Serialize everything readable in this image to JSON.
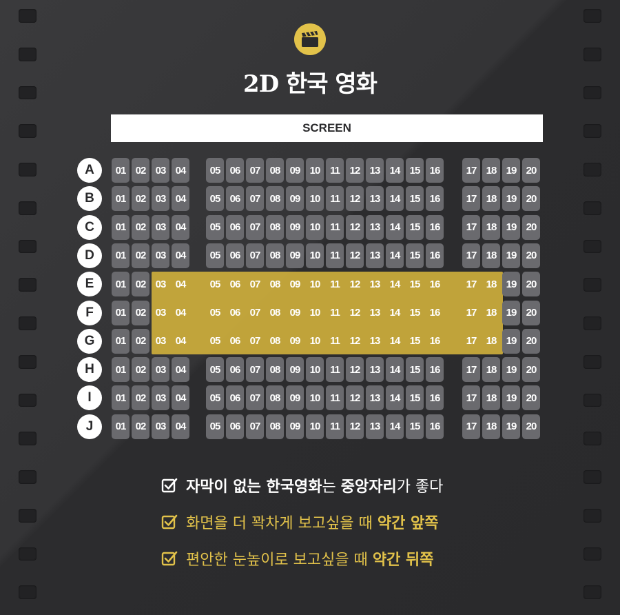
{
  "title": "2D 한국 영화",
  "screen_label": "SCREEN",
  "rows": [
    "A",
    "B",
    "C",
    "D",
    "E",
    "F",
    "G",
    "H",
    "I",
    "J"
  ],
  "seats": [
    "01",
    "02",
    "03",
    "04",
    "05",
    "06",
    "07",
    "08",
    "09",
    "10",
    "11",
    "12",
    "13",
    "14",
    "15",
    "16",
    "17",
    "18",
    "19",
    "20"
  ],
  "highlight": {
    "rows": [
      "E",
      "F",
      "G"
    ],
    "seats_from": "03",
    "seats_to": "18",
    "color": "#cdae3c"
  },
  "notes": [
    {
      "parts": [
        {
          "text": "자막이 없는 ",
          "bold": true
        },
        {
          "text": "한국영화",
          "bold": true
        },
        {
          "text": "는 ",
          "bold": false
        },
        {
          "text": "중앙자리",
          "bold": true
        },
        {
          "text": "가 좋다",
          "bold": false
        }
      ],
      "color": "#ffffff"
    },
    {
      "parts": [
        {
          "text": "화면을 더 꽉차게 보고싶을 때 ",
          "bold": false
        },
        {
          "text": "약간 앞쪽",
          "bold": true
        }
      ],
      "color": "#e2c24a"
    },
    {
      "parts": [
        {
          "text": "편안한 눈높이로 보고싶을 때 ",
          "bold": false
        },
        {
          "text": "약간 뒤쪽",
          "bold": true
        }
      ],
      "color": "#e2c24a"
    }
  ],
  "colors": {
    "background": "#333335",
    "seat": "#6a6a6e",
    "accent": "#e2c24a",
    "film_hole": "#222224"
  },
  "icons": {
    "logo": "clapperboard-icon",
    "check": "checkbox-checked-icon"
  }
}
